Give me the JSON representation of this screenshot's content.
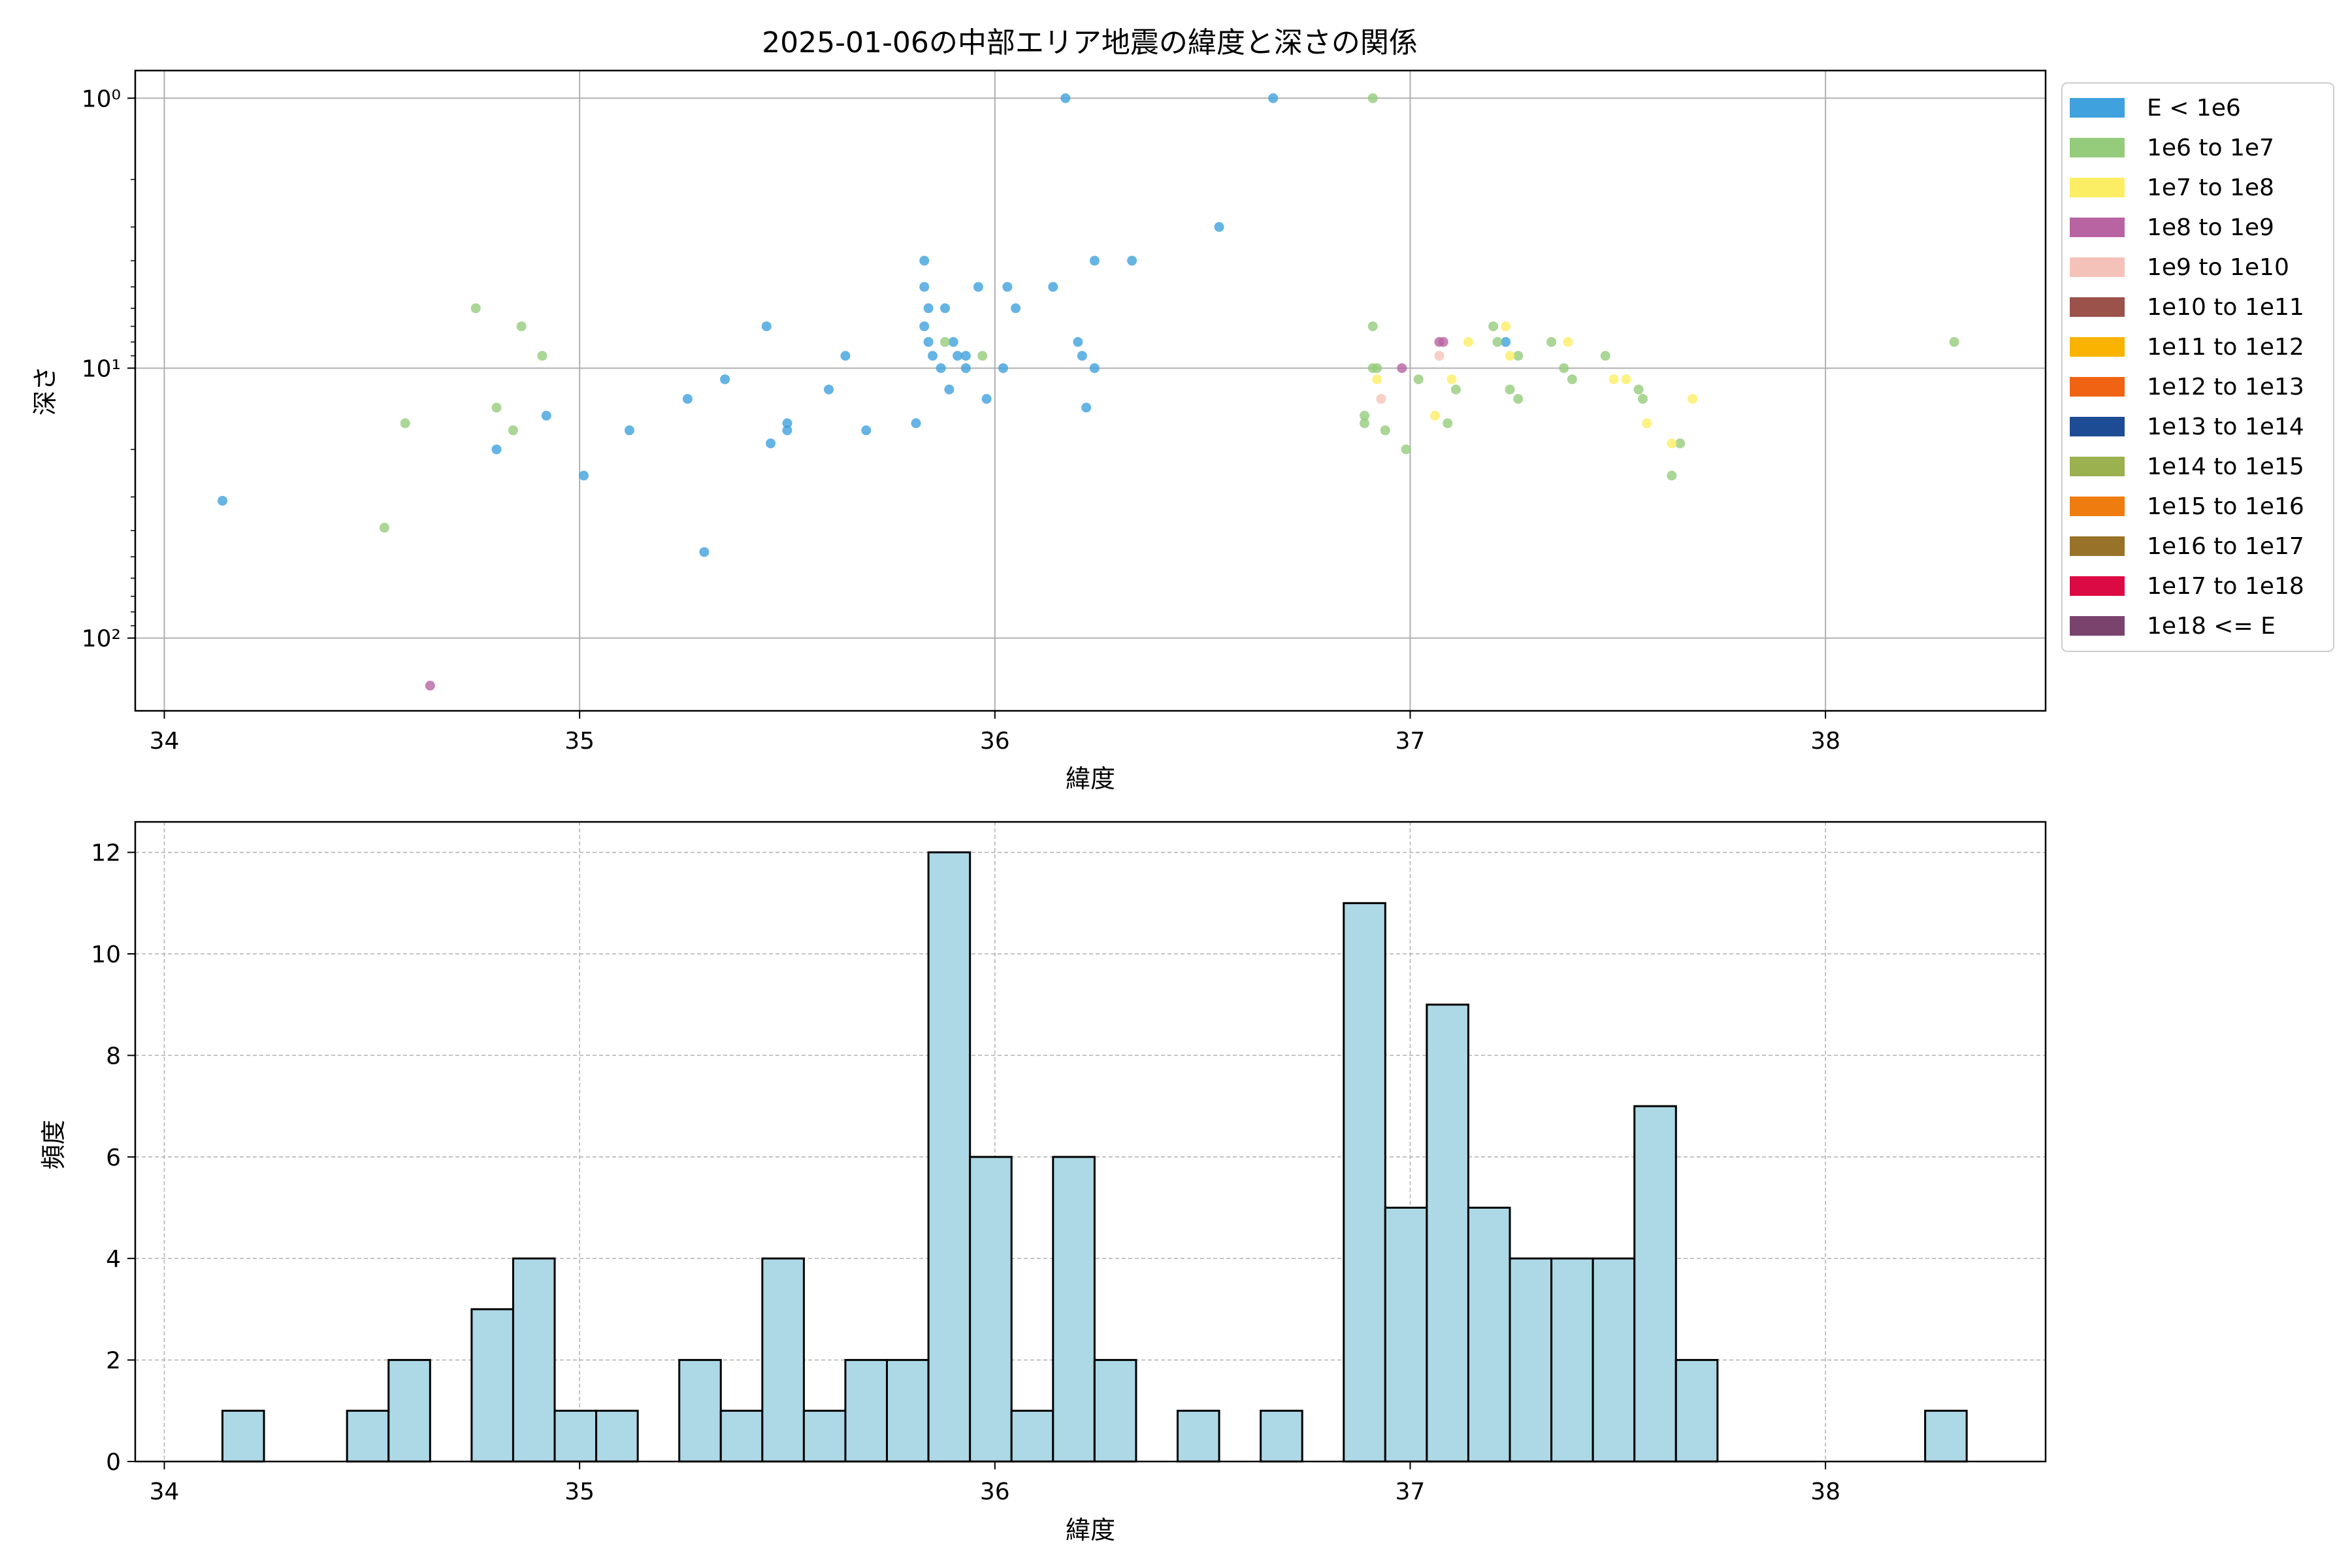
{
  "figure": {
    "title": "2025-01-06の中部エリア地震の緯度と深さの関係"
  },
  "chart_data": [
    {
      "type": "scatter",
      "title": "2025-01-06の中部エリア地震の緯度と深さの関係",
      "xlabel": "緯度",
      "ylabel": "深さ",
      "xlim": [
        33.93,
        38.53
      ],
      "ylim": [
        186,
        0.79
      ],
      "yscale": "log",
      "y_inverted": true,
      "xticks": [
        34,
        35,
        36,
        37,
        38
      ],
      "yticks": [
        1,
        10,
        100
      ],
      "ytick_labels": [
        "10⁰",
        "10¹",
        "10²"
      ],
      "grid": true,
      "legend_position": "outside-right",
      "legend": [
        {
          "label": "E < 1e6",
          "color": "#3fa1dd"
        },
        {
          "label": "1e6 to 1e7",
          "color": "#95cc7c"
        },
        {
          "label": "1e7 to 1e8",
          "color": "#fcee64"
        },
        {
          "label": "1e8 to 1e9",
          "color": "#b864a2"
        },
        {
          "label": "1e9 to 1e10",
          "color": "#f5c2ba"
        },
        {
          "label": "1e10 to 1e11",
          "color": "#9a524a"
        },
        {
          "label": "1e11 to 1e12",
          "color": "#f9b300"
        },
        {
          "label": "1e12 to 1e13",
          "color": "#ef6312"
        },
        {
          "label": "1e13 to 1e14",
          "color": "#1e4c94"
        },
        {
          "label": "1e14 to 1e15",
          "color": "#9bb04f"
        },
        {
          "label": "1e15 to 1e16",
          "color": "#ee7c0e"
        },
        {
          "label": "1e16 to 1e17",
          "color": "#987228"
        },
        {
          "label": "1e17 to 1e18",
          "color": "#dc0a44"
        },
        {
          "label": "1e18 <= E",
          "color": "#7a436e"
        }
      ],
      "series": [
        {
          "name": "E < 1e6",
          "color": "#3fa1dd",
          "points": [
            [
              34.14,
              31
            ],
            [
              34.8,
              20
            ],
            [
              34.92,
              15
            ],
            [
              35.01,
              25
            ],
            [
              35.12,
              17
            ],
            [
              35.26,
              13
            ],
            [
              35.3,
              48
            ],
            [
              35.35,
              11
            ],
            [
              35.45,
              7
            ],
            [
              35.46,
              19
            ],
            [
              35.5,
              16
            ],
            [
              35.5,
              17
            ],
            [
              35.6,
              12
            ],
            [
              35.64,
              9
            ],
            [
              35.69,
              17
            ],
            [
              35.81,
              16
            ],
            [
              35.83,
              4
            ],
            [
              35.83,
              5
            ],
            [
              35.83,
              7
            ],
            [
              35.84,
              6
            ],
            [
              35.84,
              8
            ],
            [
              35.85,
              9
            ],
            [
              35.87,
              10
            ],
            [
              35.88,
              6
            ],
            [
              35.89,
              12
            ],
            [
              35.9,
              8
            ],
            [
              35.91,
              9
            ],
            [
              35.93,
              9
            ],
            [
              35.93,
              10
            ],
            [
              35.96,
              5
            ],
            [
              35.98,
              13
            ],
            [
              36.02,
              10
            ],
            [
              36.03,
              5
            ],
            [
              36.05,
              6
            ],
            [
              36.14,
              5
            ],
            [
              36.17,
              1
            ],
            [
              36.2,
              8
            ],
            [
              36.21,
              9
            ],
            [
              36.22,
              14
            ],
            [
              36.24,
              4
            ],
            [
              36.24,
              10
            ],
            [
              36.33,
              4
            ],
            [
              36.54,
              3
            ],
            [
              36.67,
              1
            ],
            [
              37.23,
              8
            ]
          ]
        },
        {
          "name": "1e6 to 1e7",
          "color": "#95cc7c",
          "points": [
            [
              34.53,
              39
            ],
            [
              34.58,
              16
            ],
            [
              34.75,
              6
            ],
            [
              34.8,
              14
            ],
            [
              34.84,
              17
            ],
            [
              34.86,
              7
            ],
            [
              34.91,
              9
            ],
            [
              35.88,
              8
            ],
            [
              35.97,
              9
            ],
            [
              36.89,
              15
            ],
            [
              36.89,
              16
            ],
            [
              36.91,
              1
            ],
            [
              36.91,
              7
            ],
            [
              36.91,
              10
            ],
            [
              36.92,
              10
            ],
            [
              36.94,
              17
            ],
            [
              36.99,
              20
            ],
            [
              37.02,
              11
            ],
            [
              37.09,
              16
            ],
            [
              37.11,
              12
            ],
            [
              37.2,
              7
            ],
            [
              37.21,
              8
            ],
            [
              37.24,
              12
            ],
            [
              37.26,
              9
            ],
            [
              37.26,
              13
            ],
            [
              37.34,
              8
            ],
            [
              37.37,
              10
            ],
            [
              37.39,
              11
            ],
            [
              37.47,
              9
            ],
            [
              37.55,
              12
            ],
            [
              37.56,
              13
            ],
            [
              37.63,
              25
            ],
            [
              37.65,
              19
            ],
            [
              38.31,
              8
            ]
          ]
        },
        {
          "name": "1e7 to 1e8",
          "color": "#fcee64",
          "points": [
            [
              36.92,
              11
            ],
            [
              37.06,
              15
            ],
            [
              37.1,
              11
            ],
            [
              37.14,
              8
            ],
            [
              37.23,
              7
            ],
            [
              37.24,
              9
            ],
            [
              37.38,
              8
            ],
            [
              37.49,
              11
            ],
            [
              37.52,
              11
            ],
            [
              37.57,
              16
            ],
            [
              37.63,
              19
            ],
            [
              37.68,
              13
            ]
          ]
        },
        {
          "name": "1e8 to 1e9",
          "color": "#b864a2",
          "points": [
            [
              34.64,
              150
            ],
            [
              36.98,
              10
            ],
            [
              37.07,
              8
            ],
            [
              37.08,
              8
            ]
          ]
        },
        {
          "name": "1e9 to 1e10",
          "color": "#f5c2ba",
          "points": [
            [
              36.93,
              13
            ],
            [
              37.07,
              9
            ]
          ]
        }
      ]
    },
    {
      "type": "histogram",
      "xlabel": "緯度",
      "ylabel": "頻度",
      "xlim": [
        33.93,
        38.53
      ],
      "ylim": [
        0,
        12.6
      ],
      "xticks": [
        34,
        35,
        36,
        37,
        38
      ],
      "yticks": [
        0,
        2,
        4,
        6,
        8,
        10,
        12
      ],
      "grid": true,
      "color": "#add8e6",
      "edgecolor": "#000000",
      "bin_start": 34.14,
      "bin_width": 0.1,
      "counts": [
        1,
        0,
        0,
        1,
        2,
        0,
        3,
        4,
        1,
        1,
        0,
        2,
        1,
        4,
        1,
        2,
        2,
        12,
        6,
        1,
        6,
        2,
        0,
        1,
        0,
        1,
        0,
        11,
        5,
        9,
        5,
        4,
        4,
        4,
        7,
        2,
        0,
        0,
        0,
        0,
        0,
        1
      ]
    }
  ]
}
